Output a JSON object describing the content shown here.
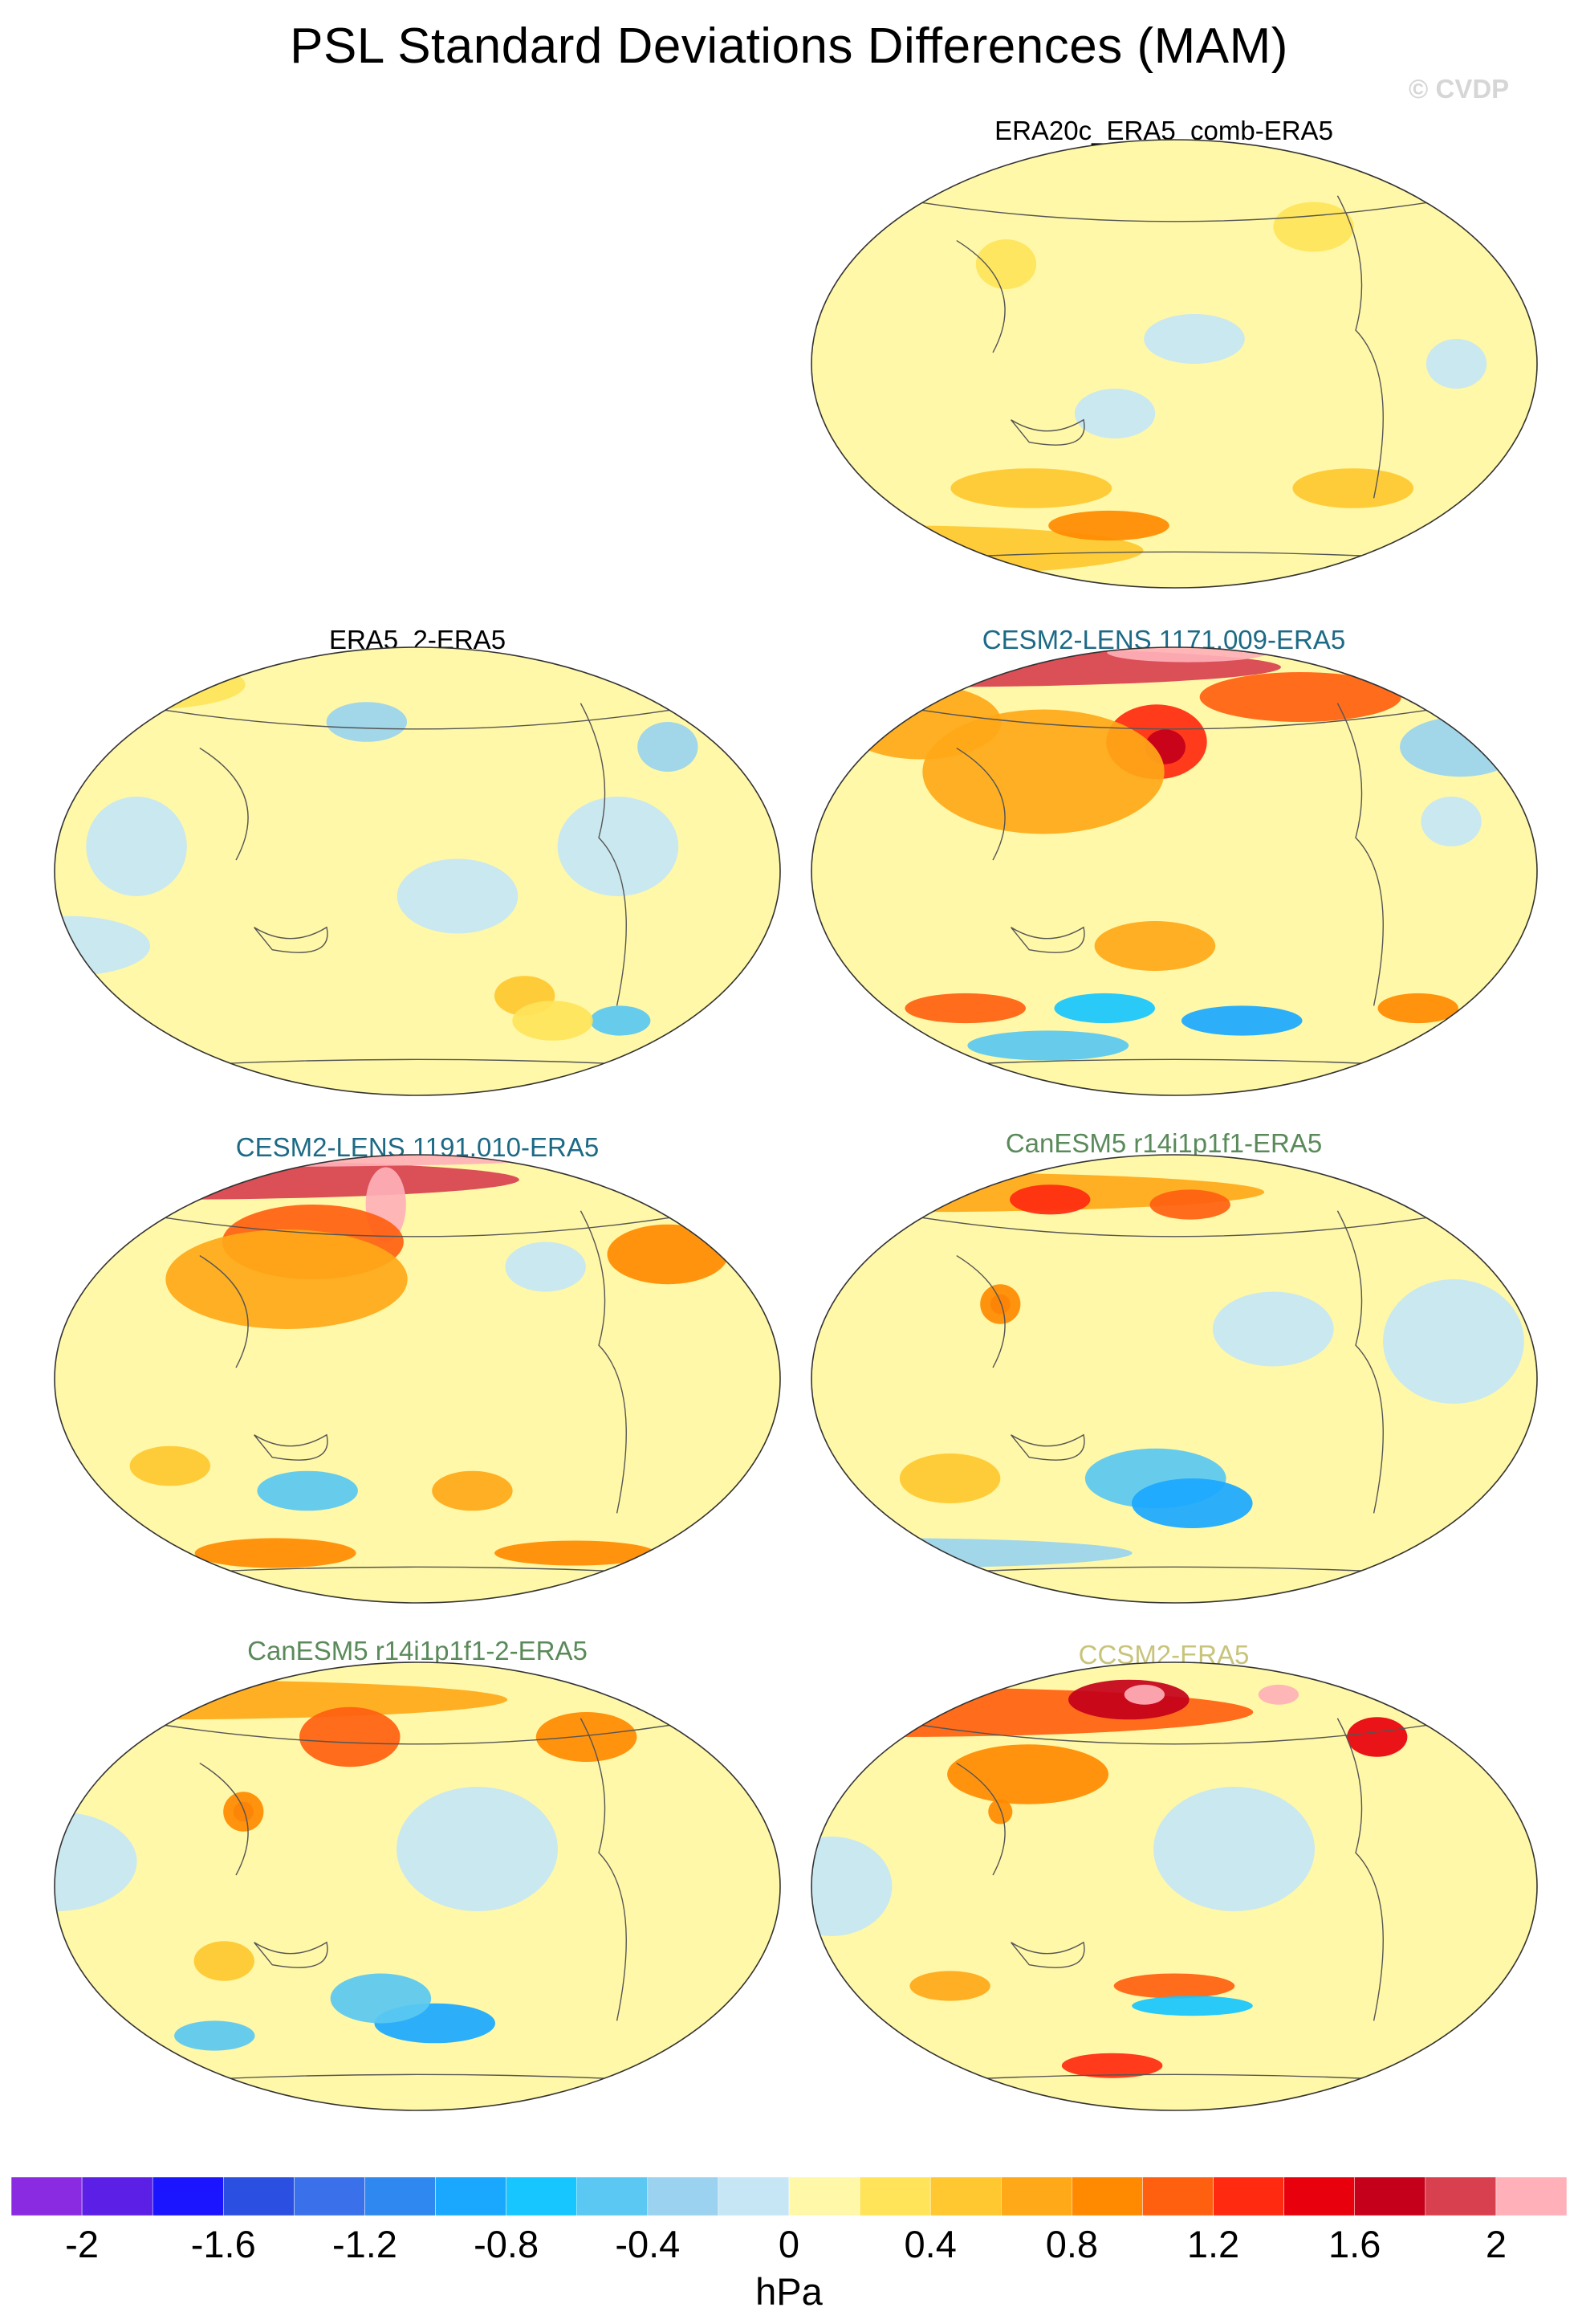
{
  "title": "PSL Standard Deviations Differences (MAM)",
  "watermark": "© CVDP",
  "panels": [
    {
      "id": "era20c",
      "title": "ERA20c_ERA5_comb-ERA5",
      "title_color": "#000000",
      "blobs": [
        {
          "lon": -170,
          "lat": 10,
          "rx": 25,
          "ry": 10,
          "v": -0.2
        },
        {
          "lon": 150,
          "lat": -20,
          "rx": 20,
          "ry": 10,
          "v": -0.2
        },
        {
          "lon": -40,
          "lat": 0,
          "rx": 15,
          "ry": 10,
          "v": -0.2
        },
        {
          "lon": 0,
          "lat": -75,
          "rx": 120,
          "ry": 10,
          "v": 0.5
        },
        {
          "lon": 100,
          "lat": -50,
          "rx": 40,
          "ry": 8,
          "v": 0.4
        },
        {
          "lon": -80,
          "lat": -50,
          "rx": 30,
          "ry": 8,
          "v": 0.5
        },
        {
          "lon": 140,
          "lat": -65,
          "rx": 30,
          "ry": 6,
          "v": 0.8
        },
        {
          "lon": 90,
          "lat": 40,
          "rx": 15,
          "ry": 10,
          "v": 0.3
        },
        {
          "lon": -100,
          "lat": 55,
          "rx": 20,
          "ry": 10,
          "v": 0.3
        }
      ]
    },
    {
      "id": "era5_2",
      "title": "ERA5_2-ERA5",
      "title_color": "#000000",
      "blobs": [
        {
          "lon": 40,
          "lat": 10,
          "rx": 25,
          "ry": 20,
          "v": -0.2
        },
        {
          "lon": -160,
          "lat": -10,
          "rx": 30,
          "ry": 15,
          "v": -0.2
        },
        {
          "lon": -80,
          "lat": 10,
          "rx": 30,
          "ry": 20,
          "v": -0.2
        },
        {
          "lon": 0,
          "lat": -30,
          "rx": 40,
          "ry": 12,
          "v": -0.2
        },
        {
          "lon": 150,
          "lat": 60,
          "rx": 20,
          "ry": 8,
          "v": -0.3
        },
        {
          "lon": -40,
          "lat": 50,
          "rx": 15,
          "ry": 10,
          "v": -0.4
        },
        {
          "lon": -120,
          "lat": -50,
          "rx": 15,
          "ry": 8,
          "v": 0.4
        },
        {
          "lon": -60,
          "lat": -60,
          "rx": 15,
          "ry": 6,
          "v": -0.6
        },
        {
          "lon": -100,
          "lat": -60,
          "rx": 20,
          "ry": 8,
          "v": 0.3
        },
        {
          "lon": 0,
          "lat": 75,
          "rx": 50,
          "ry": 10,
          "v": 0.2
        }
      ]
    },
    {
      "id": "cesm2_1171",
      "title": "CESM2-LENS 1171.009-ERA5",
      "title_color": "#1d6a86",
      "blobs": [
        {
          "lon": 0,
          "lat": 82,
          "rx": 180,
          "ry": 8,
          "v": 1.8
        },
        {
          "lon": -170,
          "lat": 88,
          "rx": 40,
          "ry": 4,
          "v": 2.2
        },
        {
          "lon": 170,
          "lat": 52,
          "rx": 25,
          "ry": 15,
          "v": 1.2
        },
        {
          "lon": 175,
          "lat": 50,
          "rx": 10,
          "ry": 7,
          "v": 1.7
        },
        {
          "lon": 110,
          "lat": 40,
          "rx": 60,
          "ry": 25,
          "v": 0.6
        },
        {
          "lon": -100,
          "lat": 70,
          "rx": 50,
          "ry": 10,
          "v": 1.0
        },
        {
          "lon": 30,
          "lat": 60,
          "rx": 40,
          "ry": 15,
          "v": 0.6
        },
        {
          "lon": -20,
          "lat": 50,
          "rx": 30,
          "ry": 12,
          "v": -0.4
        },
        {
          "lon": 170,
          "lat": -30,
          "rx": 30,
          "ry": 10,
          "v": 0.6
        },
        {
          "lon": 140,
          "lat": -55,
          "rx": 25,
          "ry": 6,
          "v": -0.8
        },
        {
          "lon": -140,
          "lat": -60,
          "rx": 30,
          "ry": 6,
          "v": -1.0
        },
        {
          "lon": 60,
          "lat": -55,
          "rx": 30,
          "ry": 6,
          "v": 1.0
        },
        {
          "lon": -40,
          "lat": -55,
          "rx": 20,
          "ry": 6,
          "v": 0.9
        },
        {
          "lon": 100,
          "lat": -70,
          "rx": 40,
          "ry": 6,
          "v": -0.6
        },
        {
          "lon": -40,
          "lat": 20,
          "rx": 15,
          "ry": 10,
          "v": -0.2
        }
      ]
    },
    {
      "id": "cesm2_1191",
      "title": "CESM2-LENS 1191.010-ERA5",
      "title_color": "#1d6a86",
      "blobs": [
        {
          "lon": 0,
          "lat": 80,
          "rx": 180,
          "ry": 8,
          "v": 1.8
        },
        {
          "lon": 0,
          "lat": 88,
          "rx": 180,
          "ry": 3,
          "v": 2.2
        },
        {
          "lon": 160,
          "lat": 70,
          "rx": 10,
          "ry": 15,
          "v": 2.2
        },
        {
          "lon": 120,
          "lat": 55,
          "rx": 45,
          "ry": 15,
          "v": 1.0
        },
        {
          "lon": 110,
          "lat": 40,
          "rx": 60,
          "ry": 20,
          "v": 0.6
        },
        {
          "lon": -40,
          "lat": 50,
          "rx": 30,
          "ry": 12,
          "v": 0.9
        },
        {
          "lon": -110,
          "lat": 45,
          "rx": 20,
          "ry": 10,
          "v": -0.2
        },
        {
          "lon": 120,
          "lat": -45,
          "rx": 25,
          "ry": 8,
          "v": -0.6
        },
        {
          "lon": -150,
          "lat": -45,
          "rx": 20,
          "ry": 8,
          "v": 0.6
        },
        {
          "lon": 90,
          "lat": -70,
          "rx": 40,
          "ry": 6,
          "v": 0.9
        },
        {
          "lon": -80,
          "lat": -70,
          "rx": 40,
          "ry": 5,
          "v": 0.9
        },
        {
          "lon": 50,
          "lat": -35,
          "rx": 20,
          "ry": 8,
          "v": 0.5
        }
      ]
    },
    {
      "id": "canesm5",
      "title": "CanESM5 r14i1p1f1-ERA5",
      "title_color": "#5a8a5a",
      "blobs": [
        {
          "lon": 0,
          "lat": 75,
          "rx": 180,
          "ry": 8,
          "v": 0.7
        },
        {
          "lon": 100,
          "lat": 72,
          "rx": 20,
          "ry": 6,
          "v": 1.2
        },
        {
          "lon": -170,
          "lat": 70,
          "rx": 20,
          "ry": 6,
          "v": 1.0
        },
        {
          "lon": 90,
          "lat": 30,
          "rx": 5,
          "ry": 4,
          "v": 1.9
        },
        {
          "lon": 90,
          "lat": 30,
          "rx": 10,
          "ry": 8,
          "v": 0.8
        },
        {
          "lon": -40,
          "lat": 15,
          "rx": 35,
          "ry": 25,
          "v": -0.2
        },
        {
          "lon": -130,
          "lat": 20,
          "rx": 30,
          "ry": 15,
          "v": -0.2
        },
        {
          "lon": 170,
          "lat": -40,
          "rx": 35,
          "ry": 12,
          "v": -0.6
        },
        {
          "lon": -170,
          "lat": -50,
          "rx": 30,
          "ry": 10,
          "v": -0.9
        },
        {
          "lon": 60,
          "lat": -40,
          "rx": 25,
          "ry": 10,
          "v": 0.5
        },
        {
          "lon": 0,
          "lat": -70,
          "rx": 120,
          "ry": 6,
          "v": -0.3
        }
      ]
    },
    {
      "id": "canesm5_2",
      "title": "CanESM5 r14i1p1f1-2-ERA5",
      "title_color": "#5a8a5a",
      "blobs": [
        {
          "lon": 0,
          "lat": 75,
          "rx": 180,
          "ry": 8,
          "v": 0.7
        },
        {
          "lon": 140,
          "lat": 60,
          "rx": 25,
          "ry": 12,
          "v": 1.0
        },
        {
          "lon": -80,
          "lat": 60,
          "rx": 25,
          "ry": 10,
          "v": 0.9
        },
        {
          "lon": 90,
          "lat": 30,
          "rx": 5,
          "ry": 4,
          "v": 1.9
        },
        {
          "lon": 90,
          "lat": 30,
          "rx": 10,
          "ry": 8,
          "v": 0.8
        },
        {
          "lon": -150,
          "lat": 15,
          "rx": 40,
          "ry": 25,
          "v": -0.2
        },
        {
          "lon": 0,
          "lat": 10,
          "rx": 40,
          "ry": 20,
          "v": -0.2
        },
        {
          "lon": -170,
          "lat": -55,
          "rx": 30,
          "ry": 8,
          "v": -1.0
        },
        {
          "lon": 160,
          "lat": -45,
          "rx": 25,
          "ry": 10,
          "v": -0.6
        },
        {
          "lon": 60,
          "lat": -60,
          "rx": 20,
          "ry": 6,
          "v": -0.5
        },
        {
          "lon": 80,
          "lat": -30,
          "rx": 15,
          "ry": 8,
          "v": 0.4
        }
      ]
    },
    {
      "id": "ccsm2",
      "title": "CCSM2-ERA5",
      "title_color": "#c8c47a",
      "blobs": [
        {
          "lon": 0,
          "lat": 70,
          "rx": 180,
          "ry": 10,
          "v": 1.0
        },
        {
          "lon": 150,
          "lat": 75,
          "rx": 30,
          "ry": 8,
          "v": 1.6
        },
        {
          "lon": 160,
          "lat": 77,
          "rx": 10,
          "ry": 4,
          "v": 2.2
        },
        {
          "lon": -110,
          "lat": 77,
          "rx": 10,
          "ry": 4,
          "v": 2.2
        },
        {
          "lon": -60,
          "lat": 60,
          "rx": 15,
          "ry": 8,
          "v": 1.4
        },
        {
          "lon": 100,
          "lat": 45,
          "rx": 40,
          "ry": 12,
          "v": 0.8
        },
        {
          "lon": 90,
          "lat": 30,
          "rx": 6,
          "ry": 5,
          "v": 0.8
        },
        {
          "lon": -150,
          "lat": 15,
          "rx": 40,
          "ry": 25,
          "v": -0.2
        },
        {
          "lon": 10,
          "lat": 0,
          "rx": 30,
          "ry": 20,
          "v": -0.2
        },
        {
          "lon": 180,
          "lat": -40,
          "rx": 30,
          "ry": 5,
          "v": 1.0
        },
        {
          "lon": -170,
          "lat": -48,
          "rx": 30,
          "ry": 4,
          "v": -0.7
        },
        {
          "lon": 140,
          "lat": -72,
          "rx": 25,
          "ry": 5,
          "v": 1.2
        },
        {
          "lon": 60,
          "lat": -40,
          "rx": 20,
          "ry": 6,
          "v": 0.6
        }
      ]
    }
  ],
  "colorbar": {
    "colors": [
      "#8a2be2",
      "#5b1fe6",
      "#1a14ff",
      "#2b4fe0",
      "#3a70ea",
      "#2e88f0",
      "#1aa8ff",
      "#17c5ff",
      "#5ac8f2",
      "#9ad2ef",
      "#c6e6f6",
      "#fff8a8",
      "#ffe45a",
      "#ffc830",
      "#ffa818",
      "#ff8a00",
      "#ff6010",
      "#ff2a10",
      "#e8000c",
      "#c4001a",
      "#d84050",
      "#ffb0b8"
    ],
    "labels": [
      "-2",
      "-1.6",
      "-1.2",
      "-0.8",
      "-0.4",
      "0",
      "0.4",
      "0.8",
      "1.2",
      "1.6",
      "2"
    ],
    "units": "hPa"
  }
}
